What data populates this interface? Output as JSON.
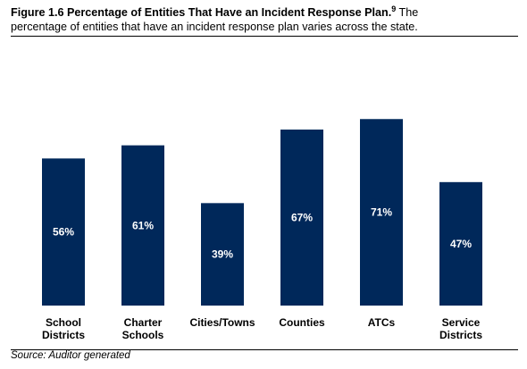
{
  "figure": {
    "title": "Figure 1.6 Percentage of Entities That Have an Incident Response Plan.",
    "footnote_marker": "9",
    "subtitle_line1": "The",
    "subtitle_line2": "percentage of entities that have an incident response plan varies across the state."
  },
  "source": "Source: Auditor generated",
  "colors": {
    "bar": "#00285a",
    "label_text": "#ffffff"
  },
  "chart_data": {
    "type": "bar",
    "categories": [
      [
        "School",
        "Districts"
      ],
      [
        "Charter",
        "Schools"
      ],
      [
        "Cities/Towns"
      ],
      [
        "Counties"
      ],
      [
        "ATCs"
      ],
      [
        "Service",
        "Districts"
      ]
    ],
    "values": [
      56,
      61,
      39,
      67,
      71,
      47
    ],
    "value_labels": [
      "56%",
      "61%",
      "39%",
      "67%",
      "71%",
      "47%"
    ],
    "ylim": [
      0,
      100
    ],
    "axis_visible": false,
    "grid": false
  }
}
